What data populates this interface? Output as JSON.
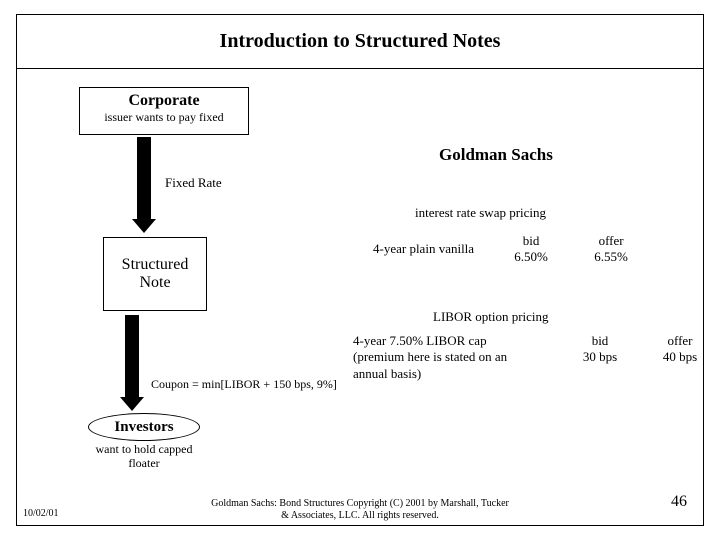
{
  "title": "Introduction to Structured Notes",
  "corporate": {
    "heading": "Corporate",
    "sub": "issuer wants to pay fixed"
  },
  "fixed_rate_label": "Fixed Rate",
  "structured_note": "Structured\nNote",
  "coupon_label": "Coupon = min[LIBOR + 150 bps, 9%]",
  "investors": {
    "heading": "Investors",
    "sub": "want to hold capped floater"
  },
  "goldman": "Goldman Sachs",
  "swap": {
    "heading": "interest rate swap pricing",
    "lead": "4-year plain vanilla",
    "bid_label": "bid",
    "bid_value": "6.50%",
    "offer_label": "offer",
    "offer_value": "6.55%"
  },
  "option": {
    "heading": "LIBOR option pricing",
    "lead1": "4-year 7.50% LIBOR cap",
    "lead2": "(premium here is stated on an annual basis)",
    "bid_label": "bid",
    "bid_value": "30 bps",
    "offer_label": "offer",
    "offer_value": "40 bps"
  },
  "footer": {
    "date": "10/02/01",
    "center": "Goldman Sachs: Bond Structures   Copyright (C) 2001 by Marshall, Tucker & Associates, LLC. All rights reserved.",
    "page": "46"
  },
  "style": {
    "page_border_color": "#000000",
    "background": "#ffffff",
    "arrow_color": "#000000",
    "font_family": "Times New Roman",
    "title_fontsize_pt": 15,
    "body_fontsize_pt": 10
  }
}
